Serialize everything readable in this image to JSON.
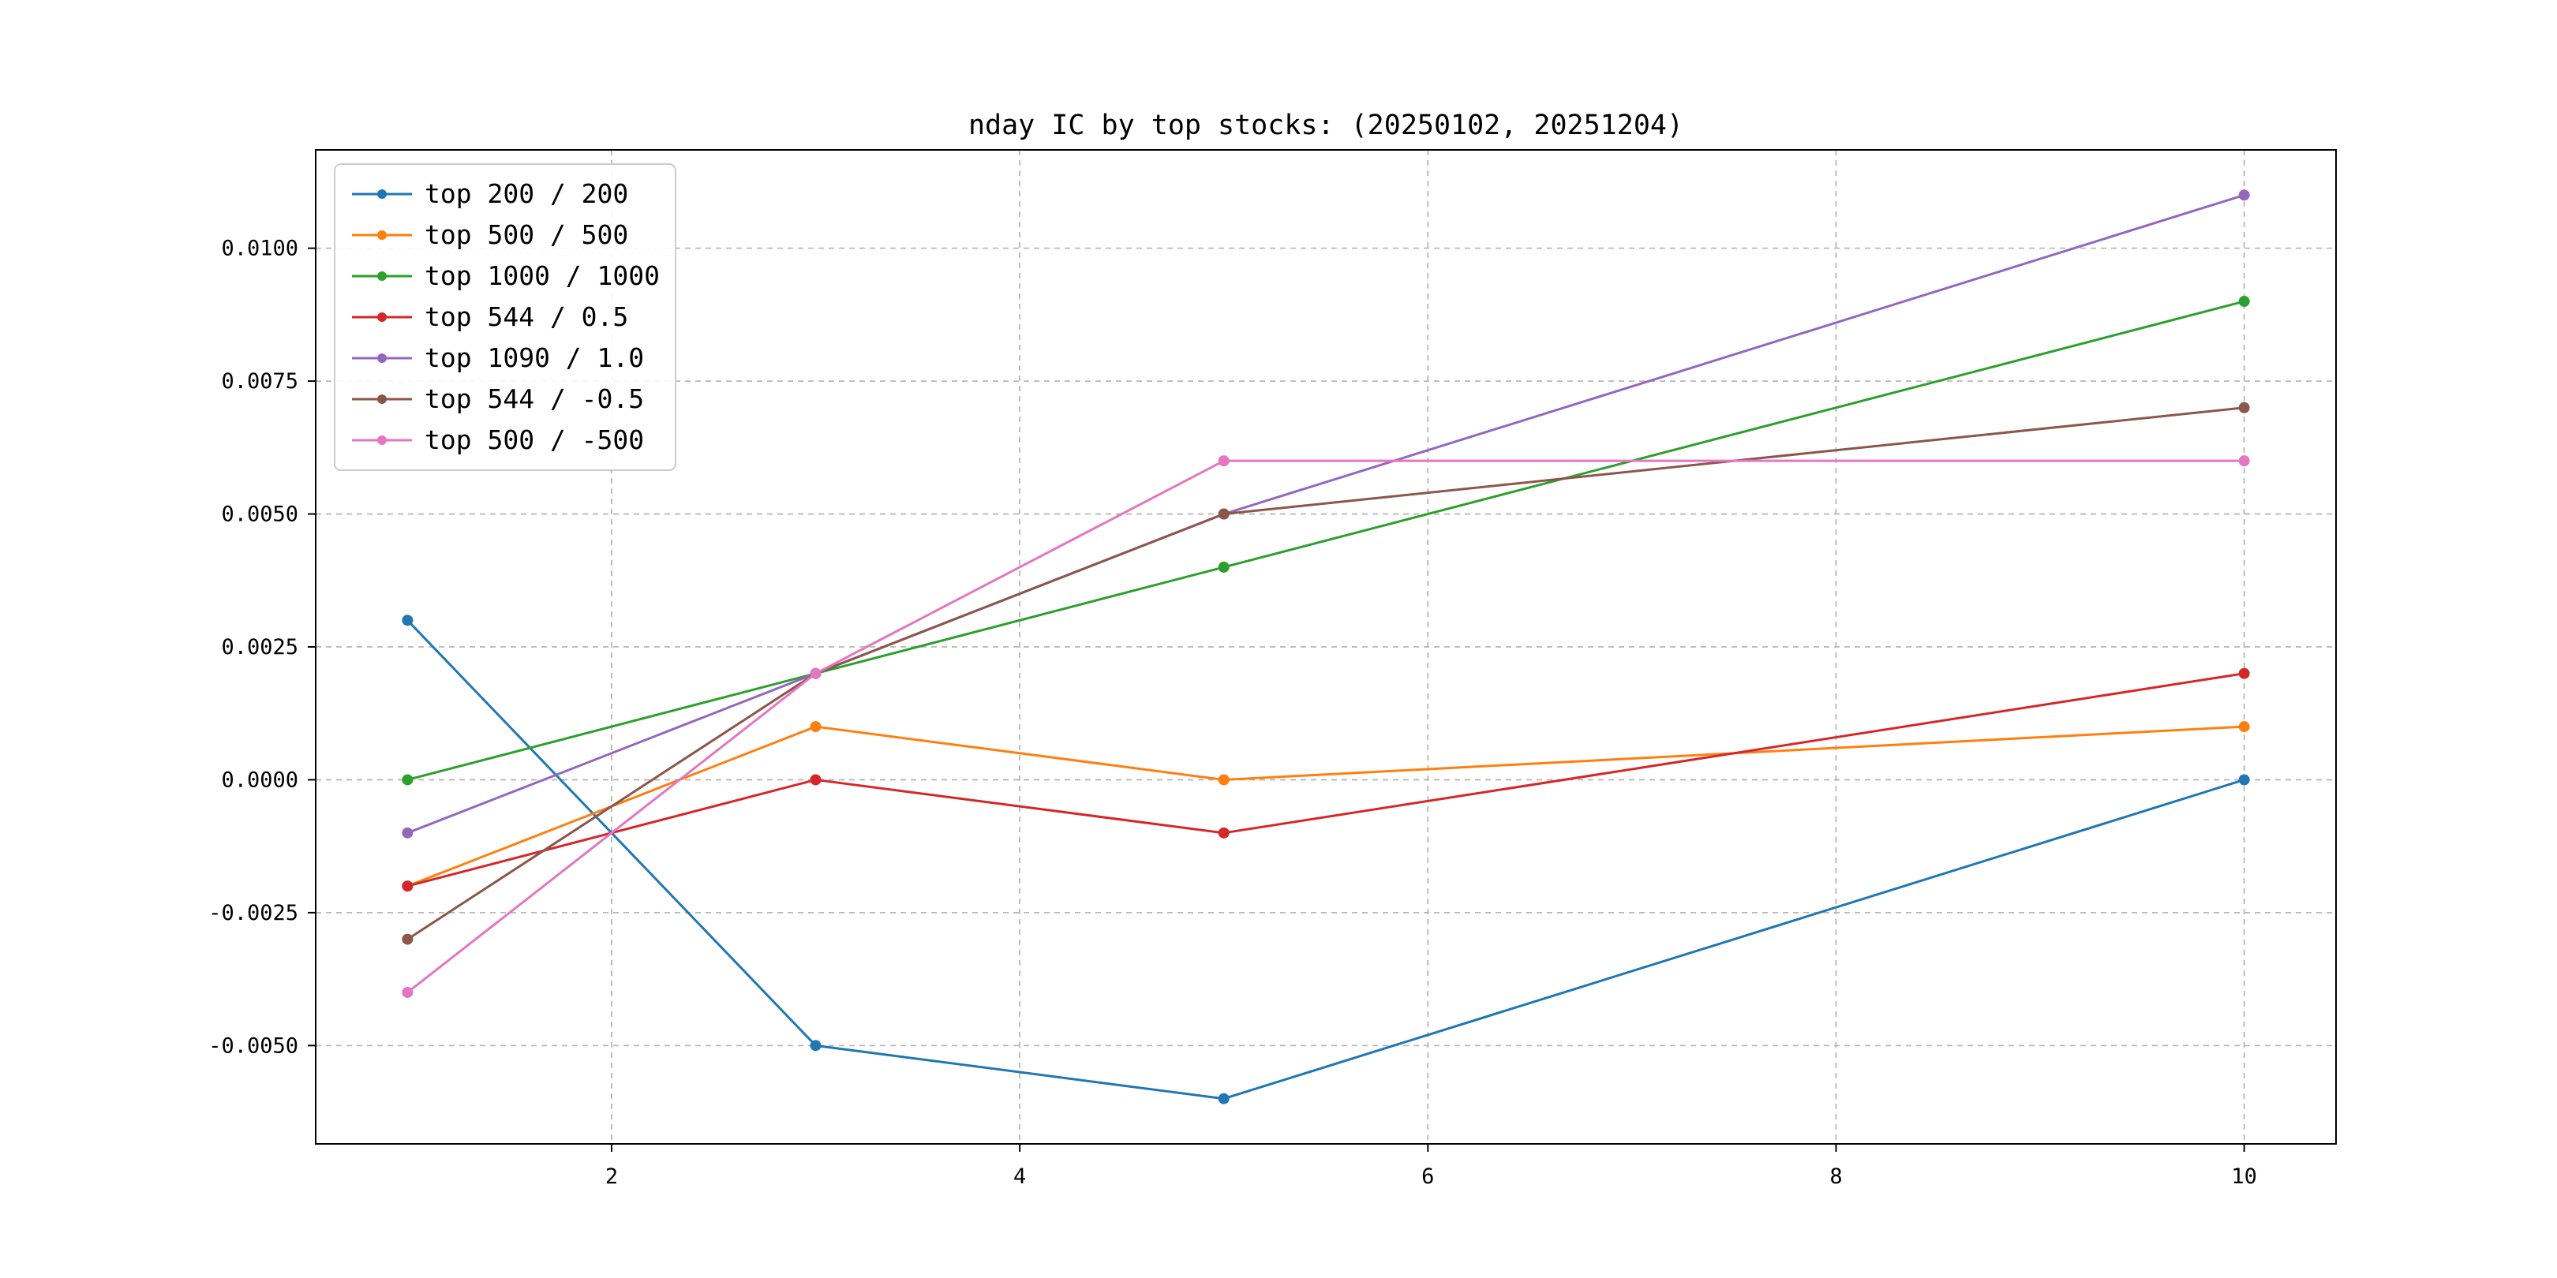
{
  "chart_data": {
    "type": "line",
    "title": "nday IC by top stocks: (20250102, 20251204)",
    "xlabel": "",
    "ylabel": "",
    "x": [
      1,
      3,
      5,
      10
    ],
    "series": [
      {
        "name": "top 200 / 200",
        "color": "#1f77b4",
        "values": [
          0.003,
          -0.005,
          -0.006,
          0.0
        ]
      },
      {
        "name": "top 500 / 500",
        "color": "#ff7f0e",
        "values": [
          -0.002,
          0.001,
          0.0,
          0.001
        ]
      },
      {
        "name": "top 1000 / 1000",
        "color": "#2ca02c",
        "values": [
          0.0,
          0.002,
          0.004,
          0.009
        ]
      },
      {
        "name": "top 544 / 0.5",
        "color": "#d62728",
        "values": [
          -0.002,
          0.0,
          -0.001,
          0.002
        ]
      },
      {
        "name": "top 1090 / 1.0",
        "color": "#9467bd",
        "values": [
          -0.001,
          0.002,
          0.005,
          0.011
        ]
      },
      {
        "name": "top 544 / -0.5",
        "color": "#8c564b",
        "values": [
          -0.003,
          0.002,
          0.005,
          0.007
        ]
      },
      {
        "name": "top 500 / -500",
        "color": "#e377c2",
        "values": [
          -0.004,
          0.002,
          0.006,
          0.006
        ]
      }
    ],
    "xticks": [
      2,
      4,
      6,
      8,
      10
    ],
    "yticks": [
      -0.005,
      -0.0025,
      0.0,
      0.0025,
      0.005,
      0.0075,
      0.01
    ],
    "xlim": [
      0.55,
      10.45
    ],
    "ylim": [
      -0.00685,
      0.01185
    ],
    "grid": true,
    "grid_style": "dashed",
    "legend_position": "upper left",
    "marker": "circle"
  }
}
